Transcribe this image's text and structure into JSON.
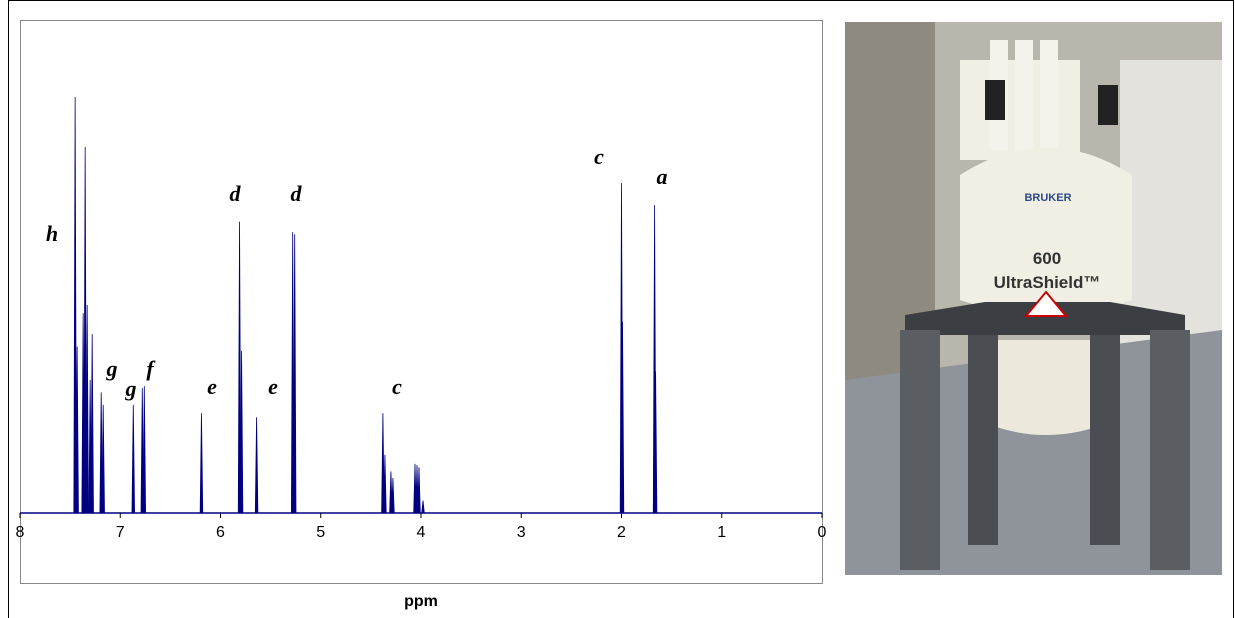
{
  "chart_data": {
    "type": "spectrum",
    "xlabel": "ppm",
    "x": [
      7.45,
      7.43,
      7.37,
      7.35,
      7.33,
      7.3,
      7.28,
      7.19,
      7.17,
      6.87,
      6.78,
      6.76,
      6.19,
      5.81,
      5.79,
      5.64,
      5.28,
      5.26,
      4.38,
      4.36,
      4.3,
      4.28,
      4.06,
      4.04,
      4.02,
      3.98,
      2.0,
      1.99,
      1.67,
      1.66
    ],
    "values": [
      100,
      40,
      48,
      88,
      50,
      32,
      43,
      29,
      26,
      26,
      30,
      30.5,
      24,
      70,
      39,
      23,
      67.5,
      67,
      24,
      14,
      10,
      8.4,
      11.8,
      11.5,
      11,
      3,
      79.3,
      46,
      74,
      34
    ],
    "color": "#000080",
    "xlim": [
      8,
      0
    ],
    "xticks": [
      8,
      7,
      6,
      5,
      4,
      3,
      2,
      1,
      0
    ],
    "ylim": [
      0,
      118.5
    ],
    "annotations": [
      "h",
      "g",
      "g",
      "f",
      "e",
      "e",
      "d",
      "d",
      "c",
      "c",
      "a"
    ]
  },
  "photo": {
    "brand": "BRUKER",
    "model": "600",
    "name": "UltraShield™"
  }
}
